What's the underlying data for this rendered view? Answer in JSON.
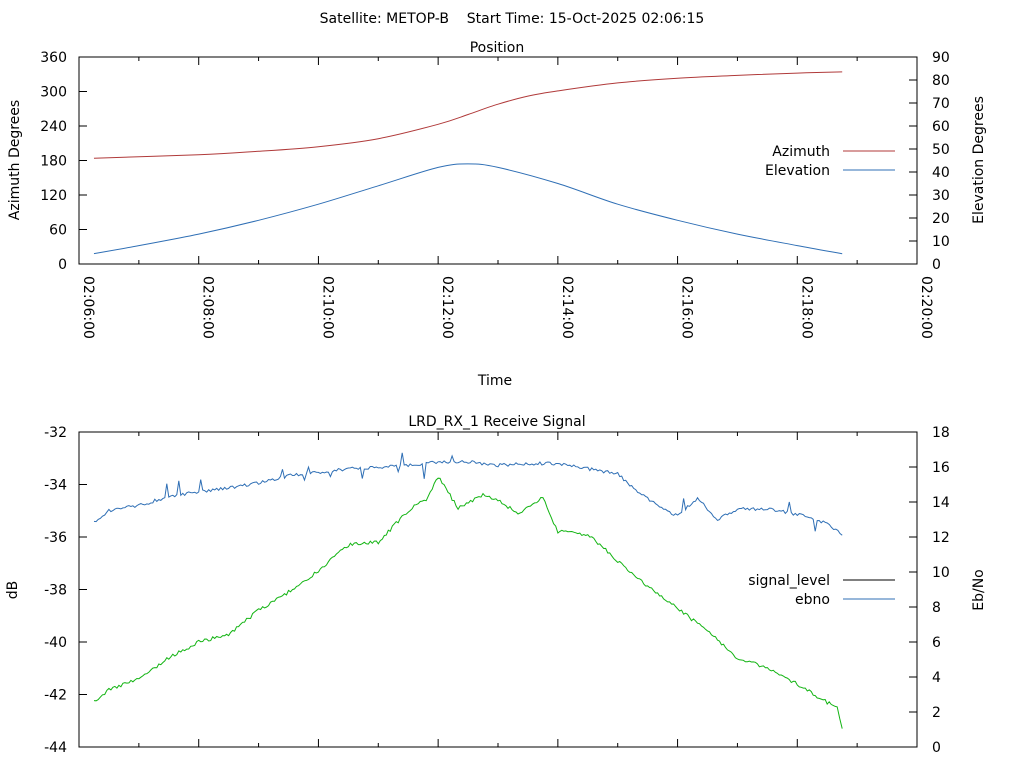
{
  "header": {
    "title": "Satellite: METOP-B    Start Time: 15-Oct-2025 02:06:15"
  },
  "chart_data": [
    {
      "type": "line",
      "title": "Position",
      "xlabel": "Time",
      "ylabel": "Azimuth Degrees",
      "y2label": "Elevation Degrees",
      "x_ticks": [
        "02:06:00",
        "02:08:00",
        "02:10:00",
        "02:12:00",
        "02:14:00",
        "02:16:00",
        "02:18:00",
        "02:20:00"
      ],
      "x_range_minutes": [
        0,
        14
      ],
      "ylim": [
        0,
        360
      ],
      "y_ticks": [
        "0",
        "60",
        "120",
        "180",
        "240",
        "300",
        "360"
      ],
      "y2lim": [
        0,
        90
      ],
      "y2_ticks": [
        "0",
        "10",
        "20",
        "30",
        "40",
        "50",
        "60",
        "70",
        "80",
        "90"
      ],
      "legend_position": "right",
      "series": [
        {
          "name": "Azimuth",
          "axis": "y",
          "color": "#b03a3a",
          "x": [
            "02:06:15",
            "02:08:00",
            "02:09:00",
            "02:10:00",
            "02:11:00",
            "02:12:00",
            "02:12:30",
            "02:13:00",
            "02:13:30",
            "02:14:00",
            "02:15:00",
            "02:16:00",
            "02:17:00",
            "02:18:00",
            "02:18:45"
          ],
          "values": [
            184,
            190,
            196,
            204,
            218,
            243,
            260,
            278,
            292,
            301,
            315,
            323,
            328,
            332,
            334
          ]
        },
        {
          "name": "Elevation",
          "axis": "y2",
          "color": "#2f6fb5",
          "x": [
            "02:06:15",
            "02:07:00",
            "02:08:00",
            "02:09:00",
            "02:10:00",
            "02:11:00",
            "02:12:00",
            "02:12:30",
            "02:13:00",
            "02:14:00",
            "02:15:00",
            "02:16:00",
            "02:17:00",
            "02:18:00",
            "02:18:45"
          ],
          "values": [
            4.5,
            8,
            13,
            19,
            26,
            34,
            42,
            43.5,
            42,
            35,
            26,
            19,
            13,
            8,
            4.5
          ]
        }
      ]
    },
    {
      "type": "line",
      "title": "LRD_RX_1 Receive Signal",
      "ylabel": "dB",
      "y2label": "Eb/No",
      "x_range_minutes": [
        0,
        14
      ],
      "ylim": [
        -44,
        -32
      ],
      "y_ticks": [
        "-44",
        "-42",
        "-40",
        "-38",
        "-36",
        "-34",
        "-32"
      ],
      "y2lim": [
        0,
        18
      ],
      "y2_ticks": [
        "0",
        "2",
        "4",
        "6",
        "8",
        "10",
        "12",
        "14",
        "16",
        "18"
      ],
      "legend_position": "right",
      "series": [
        {
          "name": "signal_level",
          "axis": "y",
          "color": "#000000",
          "x": [],
          "values": []
        },
        {
          "name": "ebno",
          "axis": "y2",
          "color": "#2f6fb5",
          "x": [
            "02:06:15",
            "02:06:30",
            "02:07:00",
            "02:07:30",
            "02:08:00",
            "02:08:30",
            "02:09:00",
            "02:09:30",
            "02:10:00",
            "02:10:30",
            "02:11:00",
            "02:11:30",
            "02:12:00",
            "02:12:30",
            "02:13:00",
            "02:13:30",
            "02:14:00",
            "02:14:30",
            "02:15:00",
            "02:15:20",
            "02:15:40",
            "02:16:00",
            "02:16:20",
            "02:16:40",
            "02:17:00",
            "02:17:30",
            "02:18:00",
            "02:18:30",
            "02:18:45"
          ],
          "values": [
            12.8,
            13.5,
            13.8,
            14.3,
            14.6,
            14.8,
            15.1,
            15.5,
            15.7,
            15.9,
            16.0,
            16.1,
            16.3,
            16.3,
            16.1,
            16.2,
            16.2,
            15.9,
            15.6,
            14.6,
            13.8,
            13.2,
            14.2,
            13.0,
            13.6,
            13.6,
            13.3,
            12.8,
            12.1
          ]
        },
        {
          "name": "",
          "axis": "y",
          "color": "#13b413",
          "x": [
            "02:06:15",
            "02:06:30",
            "02:07:00",
            "02:07:30",
            "02:08:00",
            "02:08:30",
            "02:09:00",
            "02:09:30",
            "02:10:00",
            "02:10:30",
            "02:11:00",
            "02:11:30",
            "02:11:50",
            "02:12:00",
            "02:12:20",
            "02:12:45",
            "02:13:00",
            "02:13:20",
            "02:13:45",
            "02:14:00",
            "02:14:30",
            "02:15:00",
            "02:15:30",
            "02:16:00",
            "02:16:30",
            "02:17:00",
            "02:17:30",
            "02:18:00",
            "02:18:30",
            "02:18:40",
            "02:18:45"
          ],
          "values": [
            -42.3,
            -41.8,
            -41.4,
            -40.6,
            -40.0,
            -39.7,
            -38.8,
            -38.1,
            -37.3,
            -36.3,
            -36.2,
            -35.0,
            -34.5,
            -33.7,
            -34.9,
            -34.4,
            -34.6,
            -35.1,
            -34.5,
            -35.8,
            -35.9,
            -36.9,
            -37.9,
            -38.7,
            -39.6,
            -40.6,
            -41.0,
            -41.6,
            -42.3,
            -42.5,
            -43.3
          ]
        }
      ]
    }
  ]
}
